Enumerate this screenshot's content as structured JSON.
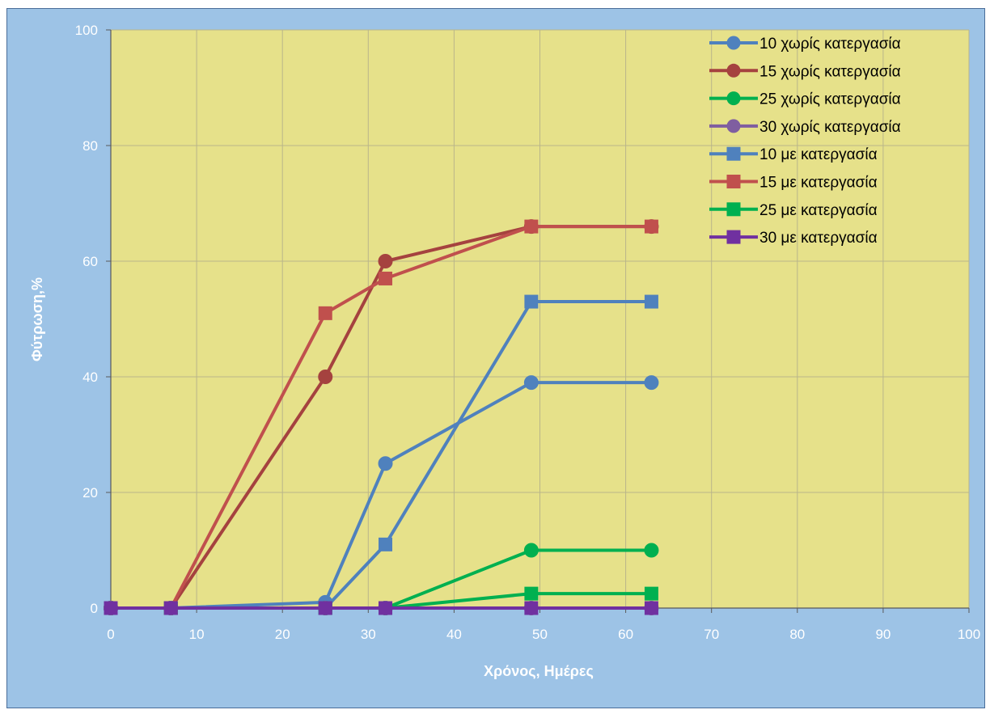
{
  "chart_data": {
    "type": "scatter",
    "xlabel": "Χρόνος, Ημέρες",
    "ylabel": "Φύτρωση,%",
    "xlim": [
      0,
      100
    ],
    "ylim": [
      0,
      100
    ],
    "x_ticks": [
      "0",
      "10",
      "20",
      "30",
      "40",
      "50",
      "60",
      "70",
      "80",
      "90",
      "100"
    ],
    "y_ticks": [
      "0",
      "20",
      "40",
      "60",
      "80",
      "100"
    ],
    "grid": true,
    "legend_position": "top-right",
    "plot_background": "#e6e18a",
    "chart_background": "#9dc3e6",
    "series": [
      {
        "name": "10 χωρίς κατεργασία",
        "marker": "circle",
        "color": "#4f81bd",
        "x": [
          0,
          7,
          25,
          32,
          49,
          63
        ],
        "y": [
          0,
          0,
          1,
          25,
          39,
          39
        ]
      },
      {
        "name": "15 χωρίς κατεργασία",
        "marker": "circle",
        "color": "#a5423f",
        "x": [
          0,
          7,
          25,
          32,
          49,
          63
        ],
        "y": [
          0,
          0,
          40,
          60,
          66,
          66
        ]
      },
      {
        "name": "25 χωρίς κατεργασία",
        "marker": "circle",
        "color": "#00b050",
        "x": [
          0,
          7,
          25,
          32,
          49,
          63
        ],
        "y": [
          0,
          0,
          0,
          0,
          10,
          10
        ]
      },
      {
        "name": "30 χωρίς κατεργασία",
        "marker": "circle",
        "color": "#7f5ea0",
        "x": [
          0,
          7,
          25,
          32,
          49,
          63
        ],
        "y": [
          0,
          0,
          0,
          0,
          0,
          0
        ]
      },
      {
        "name": "10 με κατεργασία",
        "marker": "square",
        "color": "#4f81bd",
        "x": [
          0,
          7,
          25,
          32,
          49,
          63
        ],
        "y": [
          0,
          0,
          0,
          11,
          53,
          53
        ]
      },
      {
        "name": "15 με κατεργασία",
        "marker": "square",
        "color": "#c0504d",
        "x": [
          0,
          7,
          25,
          32,
          49,
          63
        ],
        "y": [
          0,
          0,
          51,
          57,
          66,
          66
        ]
      },
      {
        "name": "25 με κατεργασία",
        "marker": "square",
        "color": "#00b050",
        "x": [
          0,
          7,
          25,
          32,
          49,
          63
        ],
        "y": [
          0,
          0,
          0,
          0,
          2.5,
          2.5
        ]
      },
      {
        "name": "30 με κατεργασία",
        "marker": "square",
        "color": "#7030a0",
        "x": [
          0,
          7,
          25,
          32,
          49,
          63
        ],
        "y": [
          0,
          0,
          0,
          0,
          0,
          0
        ]
      }
    ]
  }
}
